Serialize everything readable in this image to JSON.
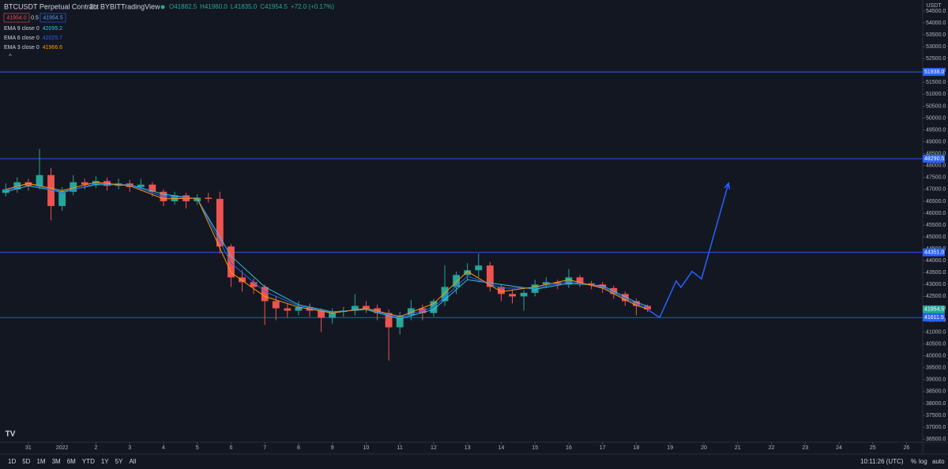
{
  "header": {
    "symbol": "BTCUSDT Perpetual Contract",
    "interval": "2h",
    "exchange": "BYBIT",
    "platform": "TradingView",
    "ohlc": [
      "O41882.5",
      "H41960.0",
      "L41835.0",
      "C41954.5",
      "+72.0 (+0.17%)"
    ],
    "bid": "41954.0",
    "spread": "0.5",
    "ask": "41954.5"
  },
  "chart_data": {
    "type": "candlestick",
    "currency": "USDT",
    "up_color": "#26a69a",
    "down_color": "#ef5350",
    "x": [
      -0.67,
      -0.33,
      0,
      0.33,
      0.67,
      1,
      1.33,
      1.67,
      2,
      2.33,
      2.67,
      3,
      3.33,
      3.67,
      4,
      4.33,
      4.67,
      5,
      5.33,
      5.67,
      6,
      6.33,
      6.67,
      7,
      7.33,
      7.67,
      8,
      8.33,
      8.67,
      9,
      9.33,
      9.67,
      10,
      10.33,
      10.67,
      11,
      11.33,
      11.67,
      12,
      12.33,
      12.67,
      13,
      13.33,
      13.67,
      14,
      14.33,
      14.67,
      15,
      15.33,
      15.67,
      16,
      16.33,
      16.67,
      17,
      17.33,
      17.67,
      18,
      18.33
    ],
    "open": [
      46850,
      47000,
      47300,
      47150,
      47600,
      46300,
      46900,
      47300,
      47200,
      47350,
      47150,
      47250,
      47100,
      47200,
      46900,
      46500,
      46750,
      46500,
      46650,
      46600,
      44600,
      43300,
      43100,
      42900,
      42300,
      42000,
      41900,
      42050,
      41900,
      41600,
      41850,
      41900,
      42100,
      42000,
      41800,
      41200,
      41700,
      42000,
      41800,
      42300,
      42900,
      43400,
      43600,
      43800,
      42900,
      42600,
      42500,
      42650,
      43000,
      43100,
      43000,
      43300,
      43050,
      43000,
      42850,
      42600,
      42300,
      42100
    ],
    "high": [
      47250,
      47500,
      47450,
      48700,
      47900,
      47100,
      47600,
      47450,
      47550,
      47500,
      47450,
      47400,
      47450,
      47300,
      47000,
      46900,
      46850,
      46800,
      46850,
      46900,
      44700,
      43600,
      43250,
      43000,
      42500,
      42200,
      42300,
      42200,
      42000,
      42000,
      42050,
      42600,
      42300,
      42150,
      41950,
      41850,
      42350,
      42150,
      42400,
      43800,
      43550,
      43900,
      44300,
      43950,
      43000,
      42800,
      42750,
      43200,
      43300,
      43200,
      43650,
      43400,
      43150,
      43100,
      42950,
      42700,
      42400,
      42150
    ],
    "low": [
      46700,
      46850,
      46950,
      47000,
      45700,
      46100,
      46750,
      47000,
      47050,
      46950,
      47000,
      46900,
      46950,
      46700,
      46300,
      46350,
      46200,
      46350,
      46450,
      44300,
      42900,
      42700,
      42600,
      41300,
      41500,
      41600,
      41700,
      41650,
      41000,
      41350,
      41650,
      41700,
      41800,
      41500,
      39800,
      40900,
      41500,
      41500,
      41650,
      42100,
      42600,
      43200,
      43300,
      42700,
      42300,
      42200,
      41900,
      42500,
      42850,
      42800,
      42850,
      42900,
      42800,
      42650,
      42400,
      42100,
      41700,
      41850
    ],
    "close": [
      47000,
      47300,
      47150,
      47600,
      46300,
      46900,
      47300,
      47200,
      47350,
      47150,
      47250,
      47100,
      47200,
      46900,
      46500,
      46750,
      46500,
      46650,
      46600,
      44600,
      43300,
      43100,
      42900,
      42300,
      42000,
      41900,
      42050,
      41900,
      41600,
      41850,
      41900,
      42100,
      42000,
      41800,
      41200,
      41700,
      42000,
      41800,
      42300,
      42900,
      43400,
      43600,
      43800,
      42900,
      42600,
      42500,
      42650,
      43000,
      43100,
      43000,
      43300,
      43050,
      43000,
      42850,
      42600,
      42300,
      42100,
      41954.5
    ],
    "overlays": [
      {
        "name": "EMA 9 close 0",
        "last": 42095.2,
        "color": "#26c6da",
        "x": [
          -0.67,
          0,
          1,
          2,
          3,
          4,
          5,
          6,
          7,
          8,
          9,
          10,
          11,
          12,
          13,
          14,
          15,
          16,
          17,
          18,
          18.33
        ],
        "values": [
          46900,
          47150,
          46900,
          47200,
          47200,
          46800,
          46600,
          44200,
          42900,
          42150,
          41850,
          41950,
          41550,
          41950,
          43200,
          43000,
          42800,
          43050,
          42950,
          42250,
          42095.2
        ]
      },
      {
        "name": "EMA 6 close 0",
        "last": 42025.7,
        "color": "#2962ff",
        "x": [
          -0.67,
          0,
          1,
          2,
          3,
          4,
          5,
          6,
          7,
          8,
          9,
          10,
          11,
          12,
          13,
          14,
          15,
          16,
          17,
          18,
          18.33
        ],
        "values": [
          46950,
          47250,
          46850,
          47250,
          47180,
          46700,
          46620,
          43900,
          42700,
          42100,
          41820,
          41980,
          41600,
          42050,
          43350,
          42850,
          42850,
          43120,
          42900,
          42180,
          42025.7
        ]
      },
      {
        "name": "EMA 3 close 0",
        "last": 41966.6,
        "color": "#ff9800",
        "x": [
          -0.67,
          0,
          1,
          2,
          3,
          4,
          5,
          6,
          7,
          8,
          9,
          10,
          11,
          12,
          13,
          14,
          15,
          16,
          17,
          18,
          18.33
        ],
        "values": [
          47000,
          47250,
          46950,
          47300,
          47150,
          46600,
          46630,
          43500,
          42500,
          42050,
          41800,
          42000,
          41650,
          42200,
          43550,
          42700,
          42900,
          43200,
          42850,
          42120,
          41966.6
        ]
      }
    ],
    "levels": [
      {
        "value": 51938,
        "label": "51938.0"
      },
      {
        "value": 48290.5,
        "label": "48290.5"
      },
      {
        "value": 44351,
        "label": "44351.0"
      },
      {
        "value": 41611.5,
        "label": "41611.5"
      }
    ],
    "level_color": "#2962ff",
    "last_price": {
      "value": 41954.5,
      "label": "41954.5"
    },
    "projection": {
      "color": "#2962ff",
      "x": [
        18.33,
        18.69,
        19.18,
        19.32,
        19.65,
        19.93,
        20.73
      ],
      "values": [
        41954.5,
        41611.5,
        43150,
        42880,
        43550,
        43240,
        47260
      ]
    },
    "xlim": [
      -0.84,
      26.48
    ],
    "ylim": [
      36371,
      54963
    ],
    "xticks": [
      {
        "value": 0,
        "label": "31"
      },
      {
        "value": 1,
        "label": "2022"
      },
      {
        "value": 2,
        "label": "2"
      },
      {
        "value": 3,
        "label": "3"
      },
      {
        "value": 4,
        "label": "4"
      },
      {
        "value": 5,
        "label": "5"
      },
      {
        "value": 6,
        "label": "6"
      },
      {
        "value": 7,
        "label": "7"
      },
      {
        "value": 8,
        "label": "8"
      },
      {
        "value": 9,
        "label": "9"
      },
      {
        "value": 10,
        "label": "10"
      },
      {
        "value": 11,
        "label": "11"
      },
      {
        "value": 12,
        "label": "12"
      },
      {
        "value": 13,
        "label": "13"
      },
      {
        "value": 14,
        "label": "14"
      },
      {
        "value": 15,
        "label": "15"
      },
      {
        "value": 16,
        "label": "16"
      },
      {
        "value": 17,
        "label": "17"
      },
      {
        "value": 18,
        "label": "18"
      },
      {
        "value": 19,
        "label": "19"
      },
      {
        "value": 20,
        "label": "20"
      },
      {
        "value": 21,
        "label": "21"
      },
      {
        "value": 22,
        "label": "22"
      },
      {
        "value": 23,
        "label": "23"
      },
      {
        "value": 24,
        "label": "24"
      },
      {
        "value": 25,
        "label": "25"
      },
      {
        "value": 26,
        "label": "26"
      }
    ],
    "yticks": [
      {
        "value": 36500,
        "label": "36500.0"
      },
      {
        "value": 37000,
        "label": "37000.0"
      },
      {
        "value": 37500,
        "label": "37500.0"
      },
      {
        "value": 38000,
        "label": "38000.0"
      },
      {
        "value": 38500,
        "label": "38500.0"
      },
      {
        "value": 39000,
        "label": "39000.0"
      },
      {
        "value": 39500,
        "label": "39500.0"
      },
      {
        "value": 40000,
        "label": "40000.0"
      },
      {
        "value": 40500,
        "label": "40500.0"
      },
      {
        "value": 41000,
        "label": "41000.0"
      },
      {
        "value": 41500,
        "label": "41500.0"
      },
      {
        "value": 42000,
        "label": "42000.0"
      },
      {
        "value": 42500,
        "label": "42500.0"
      },
      {
        "value": 43000,
        "label": "43000.0"
      },
      {
        "value": 43500,
        "label": "43500.0"
      },
      {
        "value": 44000,
        "label": "44000.0"
      },
      {
        "value": 44500,
        "label": "44500.0"
      },
      {
        "value": 45000,
        "label": "45000.0"
      },
      {
        "value": 45500,
        "label": "45500.0"
      },
      {
        "value": 46000,
        "label": "46000.0"
      },
      {
        "value": 46500,
        "label": "46500.0"
      },
      {
        "value": 47000,
        "label": "47000.0"
      },
      {
        "value": 47500,
        "label": "47500.0"
      },
      {
        "value": 48000,
        "label": "48000.0"
      },
      {
        "value": 48500,
        "label": "48500.0"
      },
      {
        "value": 49000,
        "label": "49000.0"
      },
      {
        "value": 49500,
        "label": "49500.0"
      },
      {
        "value": 50000,
        "label": "50000.0"
      },
      {
        "value": 50500,
        "label": "50500.0"
      },
      {
        "value": 51000,
        "label": "51000.0"
      },
      {
        "value": 51500,
        "label": "51500.0"
      },
      {
        "value": 52000,
        "label": "52000.0"
      },
      {
        "value": 52500,
        "label": "52500.0"
      },
      {
        "value": 53000,
        "label": "53000.0"
      },
      {
        "value": 53500,
        "label": "53500.0"
      },
      {
        "value": 54000,
        "label": "54000.0"
      },
      {
        "value": 54500,
        "label": "54500.0"
      }
    ]
  },
  "toolbar": {
    "ranges": [
      "1D",
      "5D",
      "1M",
      "3M",
      "6M",
      "YTD",
      "1Y",
      "5Y",
      "All"
    ],
    "time": "10:11:26 (UTC)",
    "scale_options": [
      "%",
      "log",
      "auto"
    ]
  }
}
